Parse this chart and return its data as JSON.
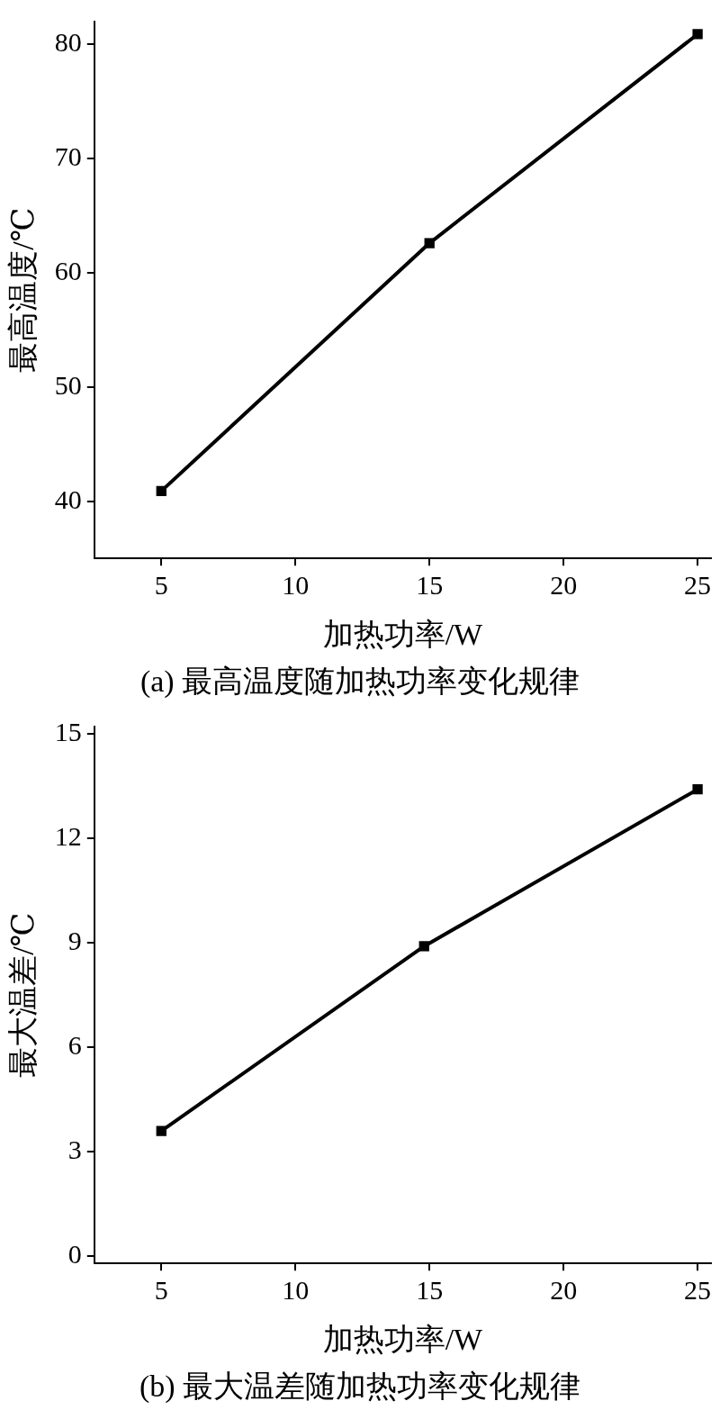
{
  "chart_data": [
    {
      "type": "line",
      "title": "(a) 最高温度随加热功率变化规律",
      "xlabel": "加热功率/W",
      "ylabel": "最高温度/℃",
      "x": [
        5,
        15,
        25
      ],
      "series": [
        {
          "color": "#000000",
          "values": [
            40.9,
            62.6,
            80.9
          ]
        }
      ],
      "xlim": [
        2.5,
        25.5
      ],
      "xticks": [
        5,
        10,
        15,
        20,
        25
      ],
      "ylim": [
        35,
        82
      ],
      "yticks": [
        40,
        50,
        60,
        70,
        80
      ],
      "grid": false,
      "legend": false,
      "marker": "square",
      "line_style": "solid"
    },
    {
      "type": "line",
      "title": "(b) 最大温差随加热功率变化规律",
      "xlabel": "加热功率/W",
      "ylabel": "最大温差/℃",
      "x": [
        5,
        14.8,
        25
      ],
      "series": [
        {
          "color": "#000000",
          "values": [
            3.6,
            8.9,
            13.4
          ]
        }
      ],
      "xlim": [
        2.5,
        25.5
      ],
      "xticks": [
        5,
        10,
        15,
        20,
        25
      ],
      "ylim": [
        -0.2,
        15.2
      ],
      "yticks": [
        0,
        3,
        6,
        9,
        12,
        15
      ],
      "grid": false,
      "legend": false,
      "marker": "square",
      "line_style": "solid"
    }
  ]
}
